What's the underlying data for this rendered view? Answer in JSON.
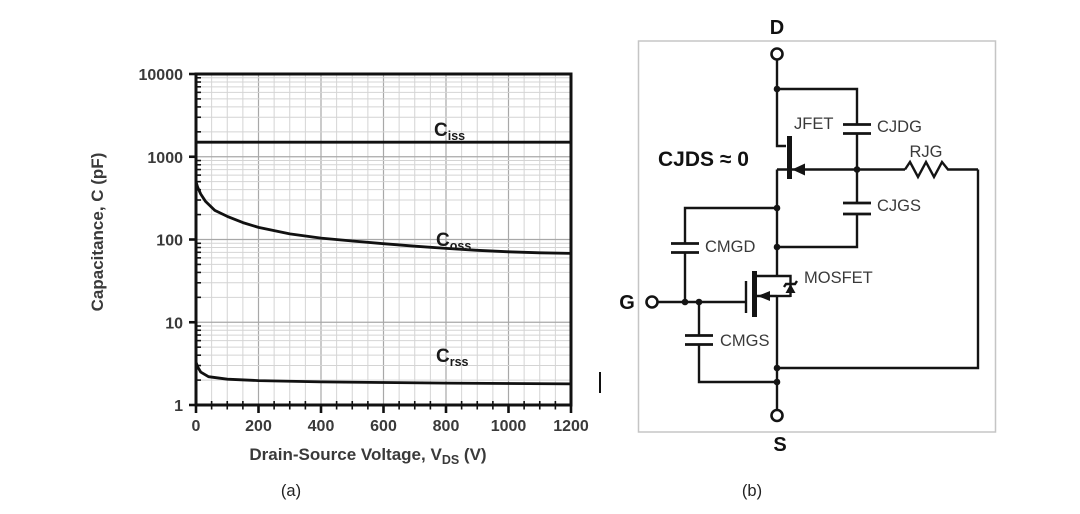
{
  "panel_a": {
    "caption": "(a)",
    "chart_data": {
      "type": "line",
      "title": "",
      "xlabel_main": "Drain-Source Voltage, V",
      "xlabel_sub": "DS",
      "xlabel_unit": " (V)",
      "ylabel": "Capacitance, C (pF)",
      "x_axis": {
        "min": 0,
        "max": 1200,
        "major_ticks": [
          0,
          200,
          400,
          600,
          800,
          1000,
          1200
        ],
        "minor_step": 50
      },
      "y_axis": {
        "scale": "log",
        "min": 1,
        "max": 10000,
        "major_ticks": [
          1,
          10,
          100,
          1000,
          10000
        ]
      },
      "grid": true,
      "legend_position": "inline-labels",
      "series": [
        {
          "name": "Ciss",
          "label_main": "C",
          "label_sub": "iss",
          "x": [
            0,
            1200
          ],
          "y": [
            1500,
            1500
          ]
        },
        {
          "name": "Coss",
          "label_main": "C",
          "label_sub": "oss",
          "x": [
            0,
            5,
            15,
            30,
            60,
            100,
            150,
            200,
            300,
            400,
            500,
            600,
            700,
            800,
            900,
            1000,
            1100,
            1200
          ],
          "y": [
            500,
            430,
            355,
            290,
            225,
            190,
            160,
            140,
            117,
            104,
            96,
            89,
            83,
            78,
            74,
            71,
            69,
            68
          ]
        },
        {
          "name": "Crss",
          "label_main": "C",
          "label_sub": "rss",
          "x": [
            0,
            5,
            15,
            40,
            100,
            200,
            400,
            600,
            800,
            1000,
            1200
          ],
          "y": [
            3.3,
            2.9,
            2.5,
            2.2,
            2.05,
            1.97,
            1.9,
            1.87,
            1.84,
            1.82,
            1.8
          ]
        }
      ]
    }
  },
  "panel_b": {
    "caption": "(b)",
    "terminals": {
      "drain": "D",
      "gate": "G",
      "source": "S"
    },
    "components": {
      "jfet": "JFET",
      "mosfet": "MOSFET",
      "cjdg": "CJDG",
      "cjgs": "CJGS",
      "cmgd": "CMGD",
      "cmgs": "CMGS",
      "rjg": "RJG"
    },
    "annotation": "CJDS ≈ 0"
  }
}
